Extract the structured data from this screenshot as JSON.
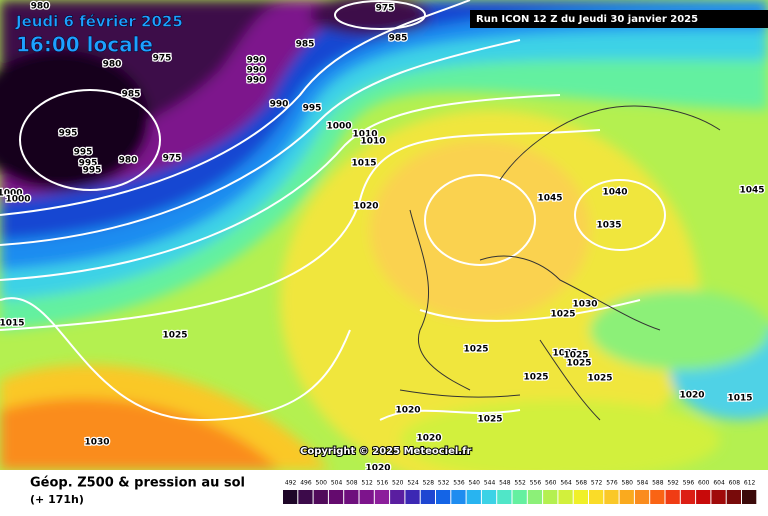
{
  "header": {
    "date": "Jeudi 6 février 2025",
    "time": "16:00 locale",
    "run": "Run ICON 12 Z du Jeudi 30 janvier 2025"
  },
  "copyright": "Copyright © 2025 Meteociel.fr",
  "legend": {
    "title": "Géop. Z500 & pression au sol",
    "lead": "(+ 171h)",
    "scale": {
      "values": [
        492,
        496,
        500,
        504,
        508,
        512,
        516,
        520,
        524,
        528,
        532,
        536,
        540,
        544,
        548,
        552,
        556,
        560,
        564,
        568,
        572,
        576,
        580,
        584,
        588,
        592,
        596,
        600,
        604,
        608,
        612
      ],
      "colors": [
        "#1e0628",
        "#3c0a4a",
        "#500a5a",
        "#640a6e",
        "#6e0f7d",
        "#7d148c",
        "#8c1e9b",
        "#5a1ea0",
        "#3c28b4",
        "#1e46d2",
        "#1464e6",
        "#1e8cf0",
        "#28b4f0",
        "#3cd2e6",
        "#50e6c8",
        "#64f0a0",
        "#8cf078",
        "#b4f050",
        "#d2f03c",
        "#f0f028",
        "#fadc28",
        "#fac828",
        "#faaa1e",
        "#fa8c1e",
        "#fa6414",
        "#f03c14",
        "#dc1e14",
        "#c80a0a",
        "#a00a0a",
        "#780a0a",
        "#3c0a0a"
      ]
    }
  },
  "isobar_labels": [
    975,
    985,
    975,
    980,
    980,
    990,
    990,
    990,
    985,
    985,
    995,
    995,
    995,
    995,
    980,
    975,
    990,
    995,
    1000,
    1010,
    1010,
    1015,
    1020,
    1000,
    1000,
    1045,
    1040,
    1035,
    1045,
    1030,
    1025,
    1025,
    1025,
    1025,
    1025,
    1025,
    1025,
    1025,
    1020,
    1015,
    1020,
    1025,
    1020,
    1020,
    1030,
    1015
  ]
}
